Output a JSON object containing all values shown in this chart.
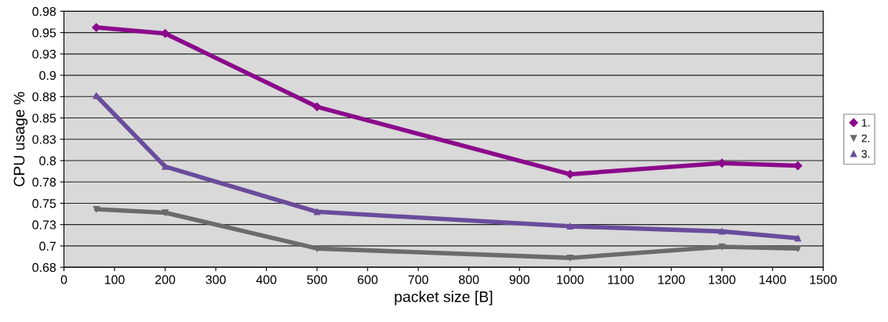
{
  "chart_data": {
    "type": "line",
    "xlabel": "packet size [B]",
    "ylabel": "CPU usage %",
    "x": [
      64,
      200,
      500,
      1000,
      1300,
      1450
    ],
    "series": [
      {
        "name": "1.",
        "color": "#8b0a8b",
        "marker": "diamond",
        "values": [
          0.956,
          0.949,
          0.863,
          0.784,
          0.797,
          0.794
        ]
      },
      {
        "name": "2.",
        "color": "#6b6b6b",
        "marker": "triangle_down",
        "values": [
          0.743,
          0.739,
          0.697,
          0.686,
          0.699,
          0.697
        ]
      },
      {
        "name": "3.",
        "color": "#6a4c9c",
        "marker": "triangle",
        "values": [
          0.876,
          0.793,
          0.74,
          0.723,
          0.717,
          0.709
        ]
      }
    ],
    "xlim": [
      0,
      1500
    ],
    "xticks": [
      0,
      100,
      200,
      300,
      400,
      500,
      600,
      700,
      800,
      900,
      1000,
      1100,
      1200,
      1300,
      1400,
      1500
    ],
    "ylim": [
      0.675,
      0.975
    ],
    "yticks": [
      {
        "value": 0.675,
        "label": "0.68"
      },
      {
        "value": 0.7,
        "label": "0.7"
      },
      {
        "value": 0.725,
        "label": "0.73"
      },
      {
        "value": 0.75,
        "label": "0.75"
      },
      {
        "value": 0.775,
        "label": "0.78"
      },
      {
        "value": 0.8,
        "label": "0.8"
      },
      {
        "value": 0.825,
        "label": "0.83"
      },
      {
        "value": 0.85,
        "label": "0.85"
      },
      {
        "value": 0.875,
        "label": "0.88"
      },
      {
        "value": 0.9,
        "label": "0.9"
      },
      {
        "value": 0.925,
        "label": "0.93"
      },
      {
        "value": 0.95,
        "label": "0.95"
      },
      {
        "value": 0.975,
        "label": "0.98"
      }
    ],
    "grid": "y",
    "legend": "right",
    "line_style": "solid"
  }
}
